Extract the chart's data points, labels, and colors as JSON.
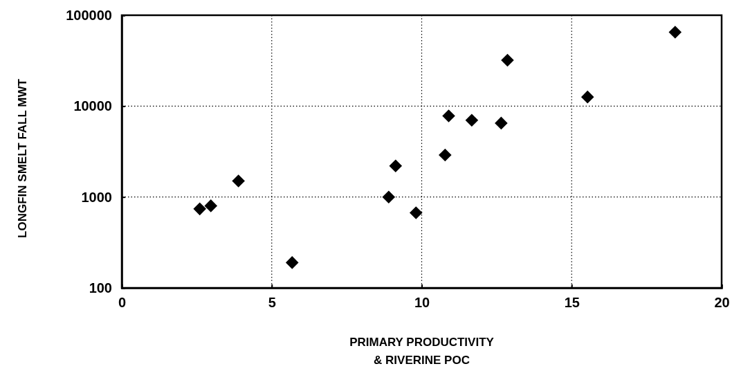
{
  "chart_data": {
    "type": "scatter",
    "xlabel": "PRIMARY PRODUCTIVITY\n& RIVERINE POC",
    "ylabel": "LONGFIN SMELT FALL MWT",
    "x": [
      2.6,
      2.97,
      3.89,
      5.68,
      8.9,
      9.13,
      9.81,
      10.78,
      10.9,
      11.67,
      12.65,
      12.86,
      15.53,
      18.45
    ],
    "series": [
      {
        "color": "#000000",
        "values": [
          740,
          800,
          1500,
          190,
          1000,
          2200,
          670,
          2900,
          7800,
          7000,
          6500,
          32000,
          12600,
          65000
        ]
      }
    ],
    "xlim": [
      0,
      20
    ],
    "xticks": [
      0,
      5,
      10,
      15,
      20
    ],
    "ylim": [
      100,
      100000
    ],
    "yticks": [
      100,
      1000,
      10000,
      100000
    ],
    "log": "y",
    "grid": true,
    "marker": "diamond"
  }
}
